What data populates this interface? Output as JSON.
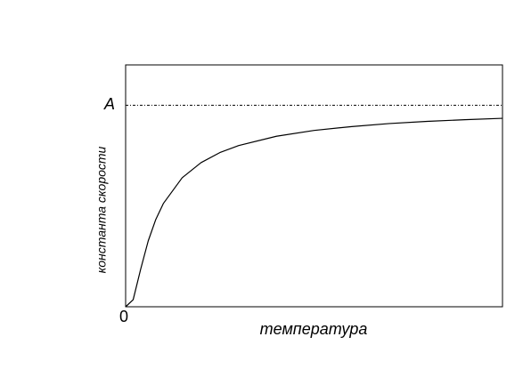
{
  "chart_data": {
    "type": "line",
    "x_label": "температура",
    "y_label": "константа скорости",
    "x": [
      0,
      0.02,
      0.04,
      0.06,
      0.08,
      0.1,
      0.15,
      0.2,
      0.25,
      0.3,
      0.4,
      0.5,
      0.6,
      0.7,
      0.8,
      0.9,
      1.0
    ],
    "values": [
      0,
      0.035,
      0.187,
      0.327,
      0.433,
      0.512,
      0.64,
      0.715,
      0.765,
      0.8,
      0.846,
      0.875,
      0.894,
      0.909,
      0.92,
      0.928,
      0.935
    ],
    "color": "#000000",
    "xlim": [
      0,
      1
    ],
    "ylim": [
      0,
      1.2
    ],
    "xticks": [
      0
    ],
    "yticks": [
      {
        "value": 1,
        "label": "A"
      }
    ]
  }
}
